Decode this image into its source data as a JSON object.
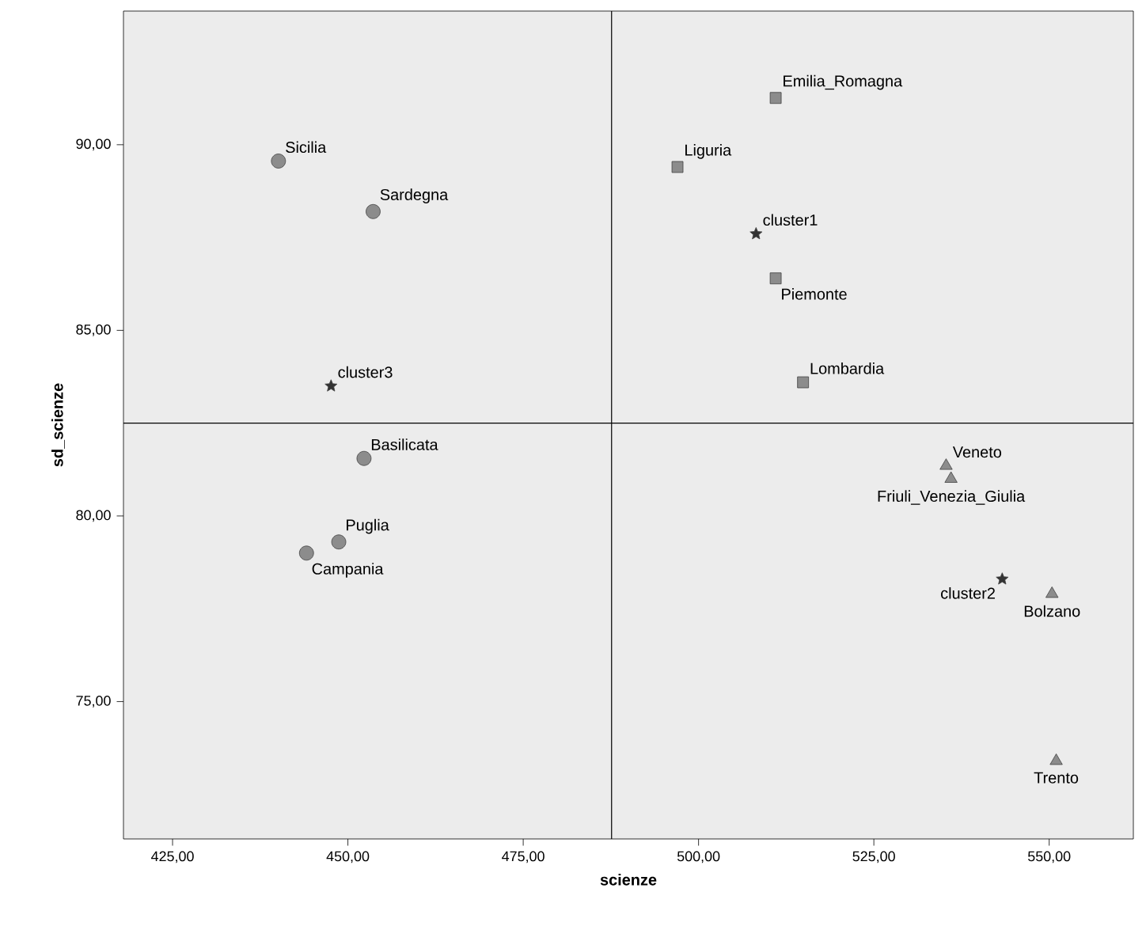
{
  "chart_data": {
    "type": "scatter",
    "xlabel": "scienze",
    "ylabel": "sd_scienze",
    "xlim": [
      418,
      562
    ],
    "ylim": [
      71.3,
      93.6
    ],
    "xticks": [
      {
        "value": 425,
        "label": "425,00"
      },
      {
        "value": 450,
        "label": "450,00"
      },
      {
        "value": 475,
        "label": "475,00"
      },
      {
        "value": 500,
        "label": "500,00"
      },
      {
        "value": 525,
        "label": "525,00"
      },
      {
        "value": 550,
        "label": "550,00"
      }
    ],
    "yticks": [
      {
        "value": 75,
        "label": "75,00"
      },
      {
        "value": 80,
        "label": "80,00"
      },
      {
        "value": 85,
        "label": "85,00"
      },
      {
        "value": 90,
        "label": "90,00"
      }
    ],
    "grid": false,
    "series": [
      {
        "color": "#8c8c8c",
        "marker": "circle",
        "x": [
          440.1,
          453.6,
          452.3,
          448.7,
          444.1
        ],
        "values": [
          89.56,
          88.2,
          81.55,
          79.3,
          79.0
        ]
      },
      {
        "color": "#8c8c8c",
        "marker": "square",
        "x": [
          511.0,
          497.0,
          511.0,
          514.9
        ],
        "values": [
          91.26,
          89.4,
          86.4,
          83.6
        ]
      },
      {
        "color": "#8c8c8c",
        "marker": "triangle",
        "x": [
          535.3,
          536.0,
          550.4,
          551.0
        ],
        "values": [
          81.35,
          81.0,
          77.9,
          73.4
        ]
      },
      {
        "color": "#333333",
        "marker": "star",
        "x": [
          508.2,
          543.3,
          447.6
        ],
        "values": [
          87.6,
          78.3,
          83.5
        ]
      }
    ],
    "ref_lines": [
      {
        "axis": "x",
        "value": 487.6
      },
      {
        "axis": "y",
        "value": 82.5
      }
    ],
    "annotations": [
      {
        "text": "Sicilia",
        "x": 440.1,
        "y": 89.56
      },
      {
        "text": "Sardegna",
        "x": 453.6,
        "y": 88.2
      },
      {
        "text": "Basilicata",
        "x": 452.3,
        "y": 81.55
      },
      {
        "text": "Puglia",
        "x": 448.7,
        "y": 79.3
      },
      {
        "text": "Campania",
        "x": 444.1,
        "y": 79.0
      },
      {
        "text": "Emilia_Romagna",
        "x": 511.0,
        "y": 91.26
      },
      {
        "text": "Liguria",
        "x": 497.0,
        "y": 89.4
      },
      {
        "text": "Piemonte",
        "x": 511.0,
        "y": 86.4
      },
      {
        "text": "Lombardia",
        "x": 514.9,
        "y": 83.6
      },
      {
        "text": "Veneto",
        "x": 535.3,
        "y": 81.35
      },
      {
        "text": "Friuli_Venezia_Giulia",
        "x": 536.0,
        "y": 81.0
      },
      {
        "text": "Bolzano",
        "x": 550.4,
        "y": 77.9
      },
      {
        "text": "Trento",
        "x": 551.0,
        "y": 73.4
      },
      {
        "text": "cluster1",
        "x": 508.2,
        "y": 87.6
      },
      {
        "text": "cluster2",
        "x": 543.3,
        "y": 78.3
      },
      {
        "text": "cluster3",
        "x": 447.6,
        "y": 83.5
      }
    ]
  }
}
